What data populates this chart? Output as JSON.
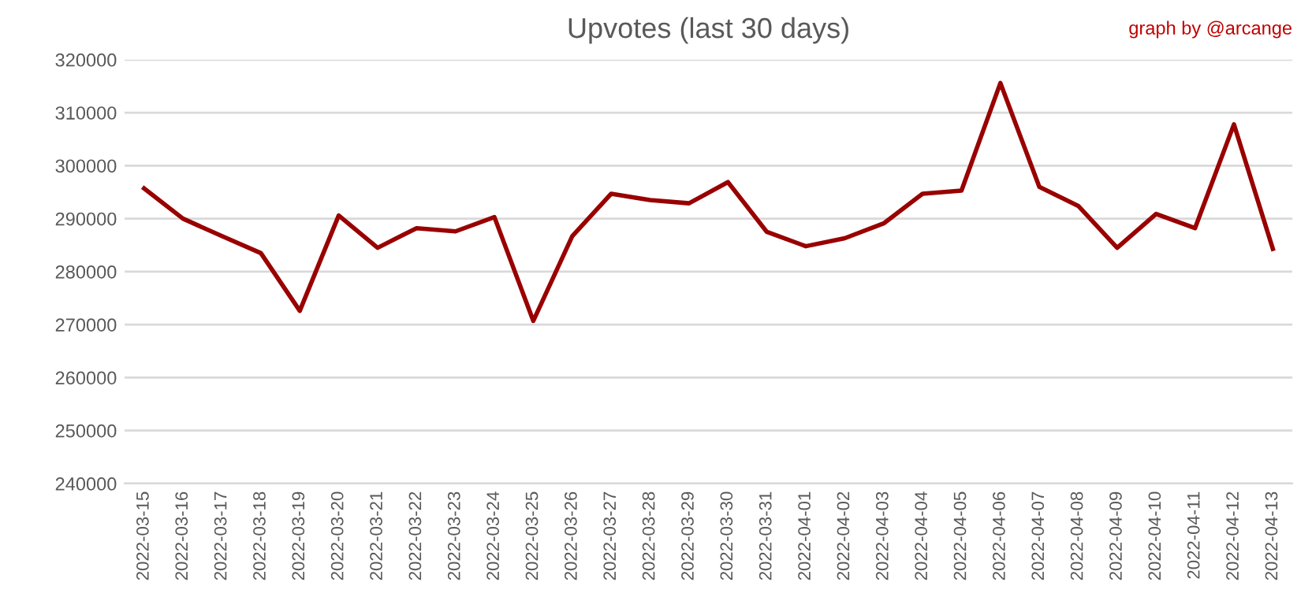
{
  "chart_data": {
    "type": "line",
    "title": "Upvotes (last 30 days)",
    "annotations": [
      "graph by @arcange"
    ],
    "categories": [
      "2022-03-15",
      "2022-03-16",
      "2022-03-17",
      "2022-03-18",
      "2022-03-19",
      "2022-03-20",
      "2022-03-21",
      "2022-03-22",
      "2022-03-23",
      "2022-03-24",
      "2022-03-25",
      "2022-03-26",
      "2022-03-27",
      "2022-03-28",
      "2022-03-29",
      "2022-03-30",
      "2022-03-31",
      "2022-04-01",
      "2022-04-02",
      "2022-04-03",
      "2022-04-04",
      "2022-04-05",
      "2022-04-06",
      "2022-04-07",
      "2022-04-08",
      "2022-04-09",
      "2022-04-10",
      "2022-04-11",
      "2022-04-12",
      "2022-04-13"
    ],
    "series": [
      {
        "color": "#990000",
        "values": [
          295700,
          290000,
          286700,
          283500,
          272600,
          290600,
          284500,
          288200,
          287600,
          290300,
          270700,
          286700,
          294700,
          293500,
          292900,
          296900,
          287500,
          284800,
          286300,
          289100,
          294700,
          295300,
          315600,
          296000,
          292400,
          284500,
          290900,
          288200,
          307800,
          284300
        ]
      }
    ],
    "ylim": [
      240000,
      320000
    ],
    "yticks": [
      240000,
      250000,
      260000,
      270000,
      280000,
      290000,
      300000,
      310000,
      320000
    ],
    "grid": "y",
    "legend": false,
    "marker": "none",
    "line_style": "solid"
  }
}
